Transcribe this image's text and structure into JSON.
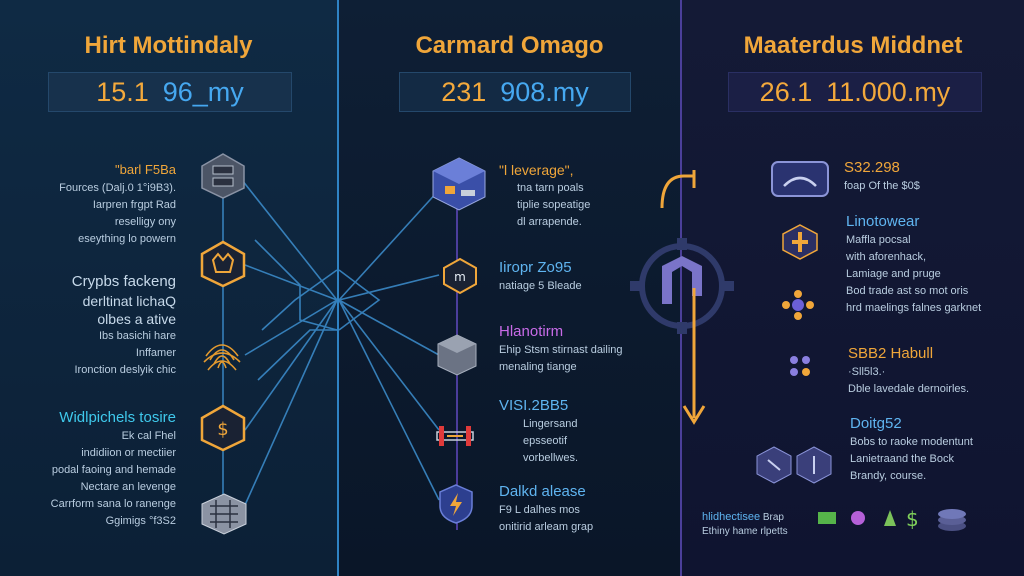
{
  "panels": {
    "left": {
      "title": "Hirt Mottindaly",
      "stat_a": "15.1",
      "stat_b": "96_my",
      "blocks": [
        {
          "heading": "\"barl F5Ba",
          "lines": [
            "Fources (Dalj.0 1°i9B3).",
            "Iarpren frgpt Rad",
            "reselligy ony",
            "eseything lo powern"
          ]
        },
        {
          "heading": "Crypbs fackeng",
          "lines": [
            "derltinat lichaQ",
            "olbes a ative",
            "Ibs basichi hare",
            "Inffamer",
            "Ironction deslyik chic"
          ]
        },
        {
          "heading": "Widlpichels tosire",
          "lines": [
            "Ek cal Fhel",
            "indidiion or mectiier",
            "podal faoing and hemade",
            "Nectare an levenge",
            "Carrform sana lo ranenge",
            "Ggimigs °f3S2"
          ]
        }
      ]
    },
    "middle": {
      "title": "Carmard Omago",
      "stat_a": "231",
      "stat_b": "908.my",
      "blocks": [
        {
          "heading": "\"l leverage\",",
          "lines": [
            "tna tarn poals",
            "tiplie sopeatige",
            "dl arrapende."
          ]
        },
        {
          "heading": "Iiropr Zo95",
          "lines": [
            "natiage 5 Bleade"
          ]
        },
        {
          "heading": "Hlanotirm",
          "lines": [
            "Ehip Stsm stirnast dailing",
            "menaling tiange"
          ]
        },
        {
          "heading": "VISI.2BB5",
          "lines": [
            "Lingersand",
            "epsseotif",
            "vorbellwes."
          ]
        },
        {
          "heading": "Dalkd alease",
          "lines": [
            "F9 L dalhes mos",
            "onitirid arleam grap"
          ]
        }
      ]
    },
    "right": {
      "title": "Maaterdus Middnet",
      "stat_a": "26.1",
      "stat_b": "11.000.my",
      "blocks": [
        {
          "heading": "S32.298",
          "lines": [
            "foap Of the $0$"
          ]
        },
        {
          "heading": "Linotowear",
          "lines": [
            "Maffla pocsal",
            "with aforenhack,",
            "Lamiage and pruge",
            "Bod trade ast so mot oris",
            "hrd maelings falnes garknet"
          ]
        },
        {
          "heading": "SBB2 Habull",
          "lines": [
            "·Sll5l3.·",
            "Dble lavedale dernoirles."
          ]
        },
        {
          "heading": "Doitg52",
          "lines": [
            "Bobs to raoke modentunt",
            "Lanietraand the Bock",
            "Brandy, course."
          ]
        },
        {
          "heading": "hlidhectisee",
          "lines": [
            "Brap",
            "Ethiny hame rlpetts"
          ]
        }
      ]
    }
  },
  "colors": {
    "accent_orange": "#f0a63a",
    "accent_blue": "#46a8f0",
    "accent_cyan": "#3fc9ec",
    "accent_purple": "#c86be8",
    "bg_left": "#0f2a44",
    "bg_middle": "#0e1f35",
    "bg_right": "#141a36"
  },
  "icons": [
    "server-cube-icon",
    "hex-fox-icon",
    "fingerprint-icon",
    "hex-dollar-icon",
    "circuit-chip-icon",
    "crypto-cube-icon",
    "hex-m-icon",
    "server-block-icon",
    "bridge-icon",
    "shield-bolt-icon",
    "gear-logo-icon",
    "arrow-curve-icon",
    "device-icon",
    "hex-cross-icon",
    "flower-dots-icon",
    "hex-pair-icon",
    "bull-icon",
    "dollar-icon",
    "coin-stack-icon"
  ]
}
